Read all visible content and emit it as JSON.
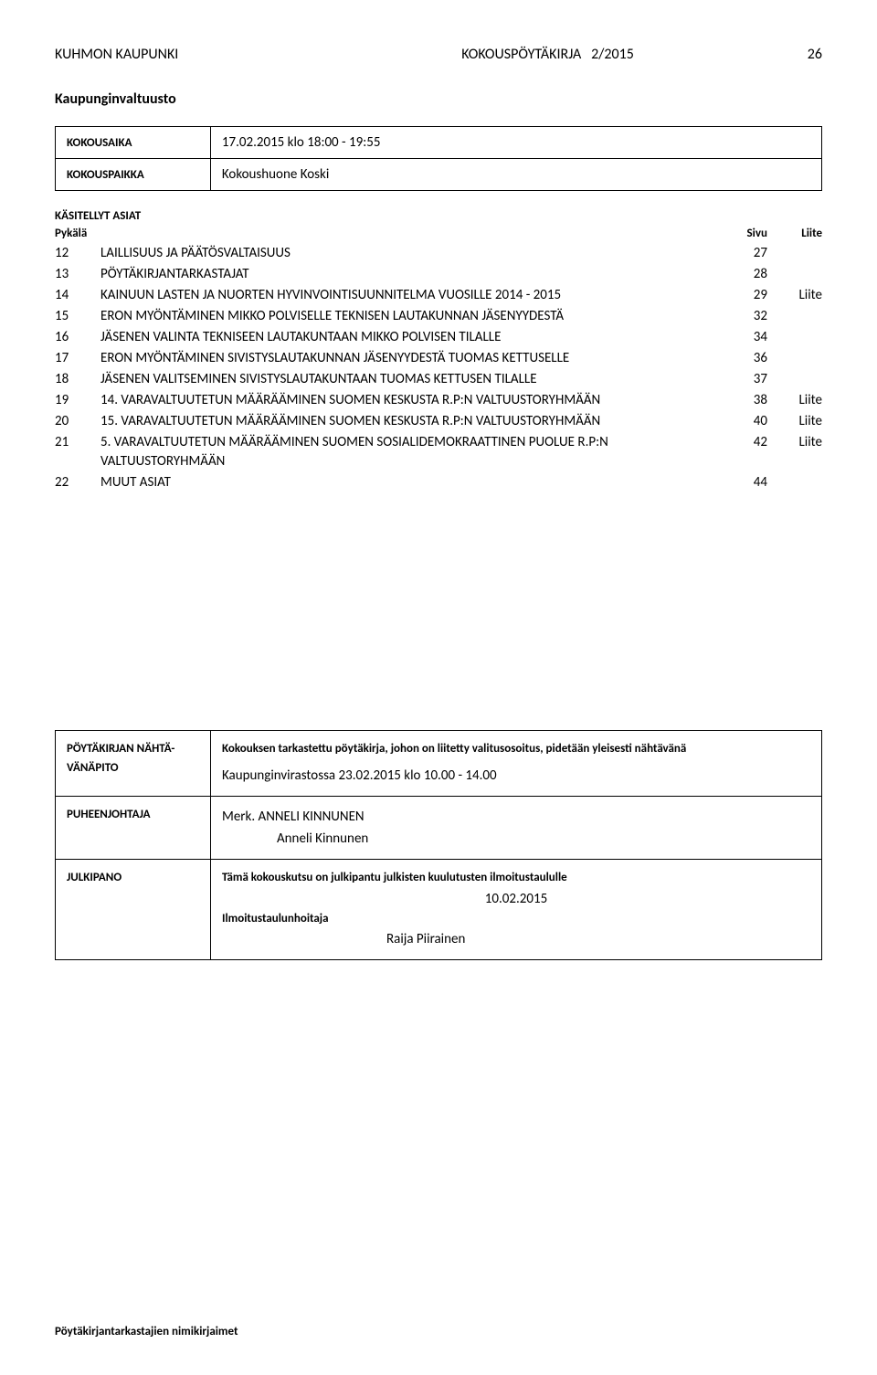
{
  "header": {
    "org": "KUHMON KAUPUNKI",
    "doc_type": "KOKOUSPÖYTÄKIRJA",
    "doc_number": "2/2015",
    "page_number": "26"
  },
  "body_title": "Kaupunginvaltuusto",
  "meta": {
    "aika_label": "KOKOUSAIKA",
    "aika_value": "17.02.2015 klo 18:00 - 19:55",
    "paikka_label": "KOKOUSPAIKKA",
    "paikka_value": "Kokoushuone Koski"
  },
  "asiat_heading": "KÄSITELLYT ASIAT",
  "asiat_columns": {
    "pykala": "Pykälä",
    "sivu": "Sivu",
    "liite": "Liite"
  },
  "asiat": [
    {
      "n": "12",
      "title": "LAILLISUUS JA PÄÄTÖSVALTAISUUS",
      "page": "27",
      "liite": ""
    },
    {
      "n": "13",
      "title": "PÖYTÄKIRJANTARKASTAJAT",
      "page": "28",
      "liite": ""
    },
    {
      "n": "14",
      "title": "KAINUUN LASTEN JA NUORTEN HYVINVOINTISUUNNITELMA VUOSILLE 2014 - 2015",
      "page": "29",
      "liite": "Liite"
    },
    {
      "n": "15",
      "title": "ERON MYÖNTÄMINEN MIKKO POLVISELLE TEKNISEN LAUTAKUNNAN JÄSENYYDESTÄ",
      "page": "32",
      "liite": ""
    },
    {
      "n": "16",
      "title": "JÄSENEN VALINTA TEKNISEEN LAUTAKUNTAAN MIKKO POLVISEN TILALLE",
      "page": "34",
      "liite": ""
    },
    {
      "n": "17",
      "title": "ERON MYÖNTÄMINEN SIVISTYSLAUTAKUNNAN JÄSENYYDESTÄ TUOMAS KETTUSELLE",
      "page": "36",
      "liite": ""
    },
    {
      "n": "18",
      "title": "JÄSENEN VALITSEMINEN SIVISTYSLAUTAKUNTAAN TUOMAS KETTUSEN TILALLE",
      "page": "37",
      "liite": ""
    },
    {
      "n": "19",
      "title": "14. VARAVALTUUTETUN MÄÄRÄÄMINEN SUOMEN KESKUSTA R.P:N VALTUUSTORYHMÄÄN",
      "page": "38",
      "liite": "Liite"
    },
    {
      "n": "20",
      "title": "15. VARAVALTUUTETUN MÄÄRÄÄMINEN SUOMEN KESKUSTA R.P:N VALTUUSTORYHMÄÄN",
      "page": "40",
      "liite": "Liite"
    },
    {
      "n": "21",
      "title": "5. VARAVALTUUTETUN MÄÄRÄÄMINEN SUOMEN SOSIALIDEMOKRAATTINEN PUOLUE R.P:N VALTUUSTORYHMÄÄN",
      "page": "42",
      "liite": "Liite"
    },
    {
      "n": "22",
      "title": "MUUT ASIAT",
      "page": "44",
      "liite": ""
    }
  ],
  "footer": {
    "nahtavana_label": "PÖYTÄKIRJAN NÄHTÄ-VÄNÄPITO",
    "nahtavana_intro": "Kokouksen tarkastettu pöytäkirja, johon on liitetty valitusosoitus, pidetään yleisesti nähtävänä",
    "nahtavana_value": "Kaupunginvirastossa 23.02.2015 klo 10.00 - 14.00",
    "pj_label": "PUHEENJOHTAJA",
    "pj_merk": "Merk. ANNELI KINNUNEN",
    "pj_name": "Anneli Kinnunen",
    "julkipano_label": "JULKIPANO",
    "julkipano_intro": "Tämä kokouskutsu on julkipantu julkisten kuulutusten ilmoitustaululle",
    "julkipano_date": "10.02.2015",
    "julkipano_role": "Ilmoitustaulunhoitaja",
    "julkipano_name": "Raija Piirainen"
  },
  "bottom_note": "Pöytäkirjantarkastajien nimikirjaimet"
}
